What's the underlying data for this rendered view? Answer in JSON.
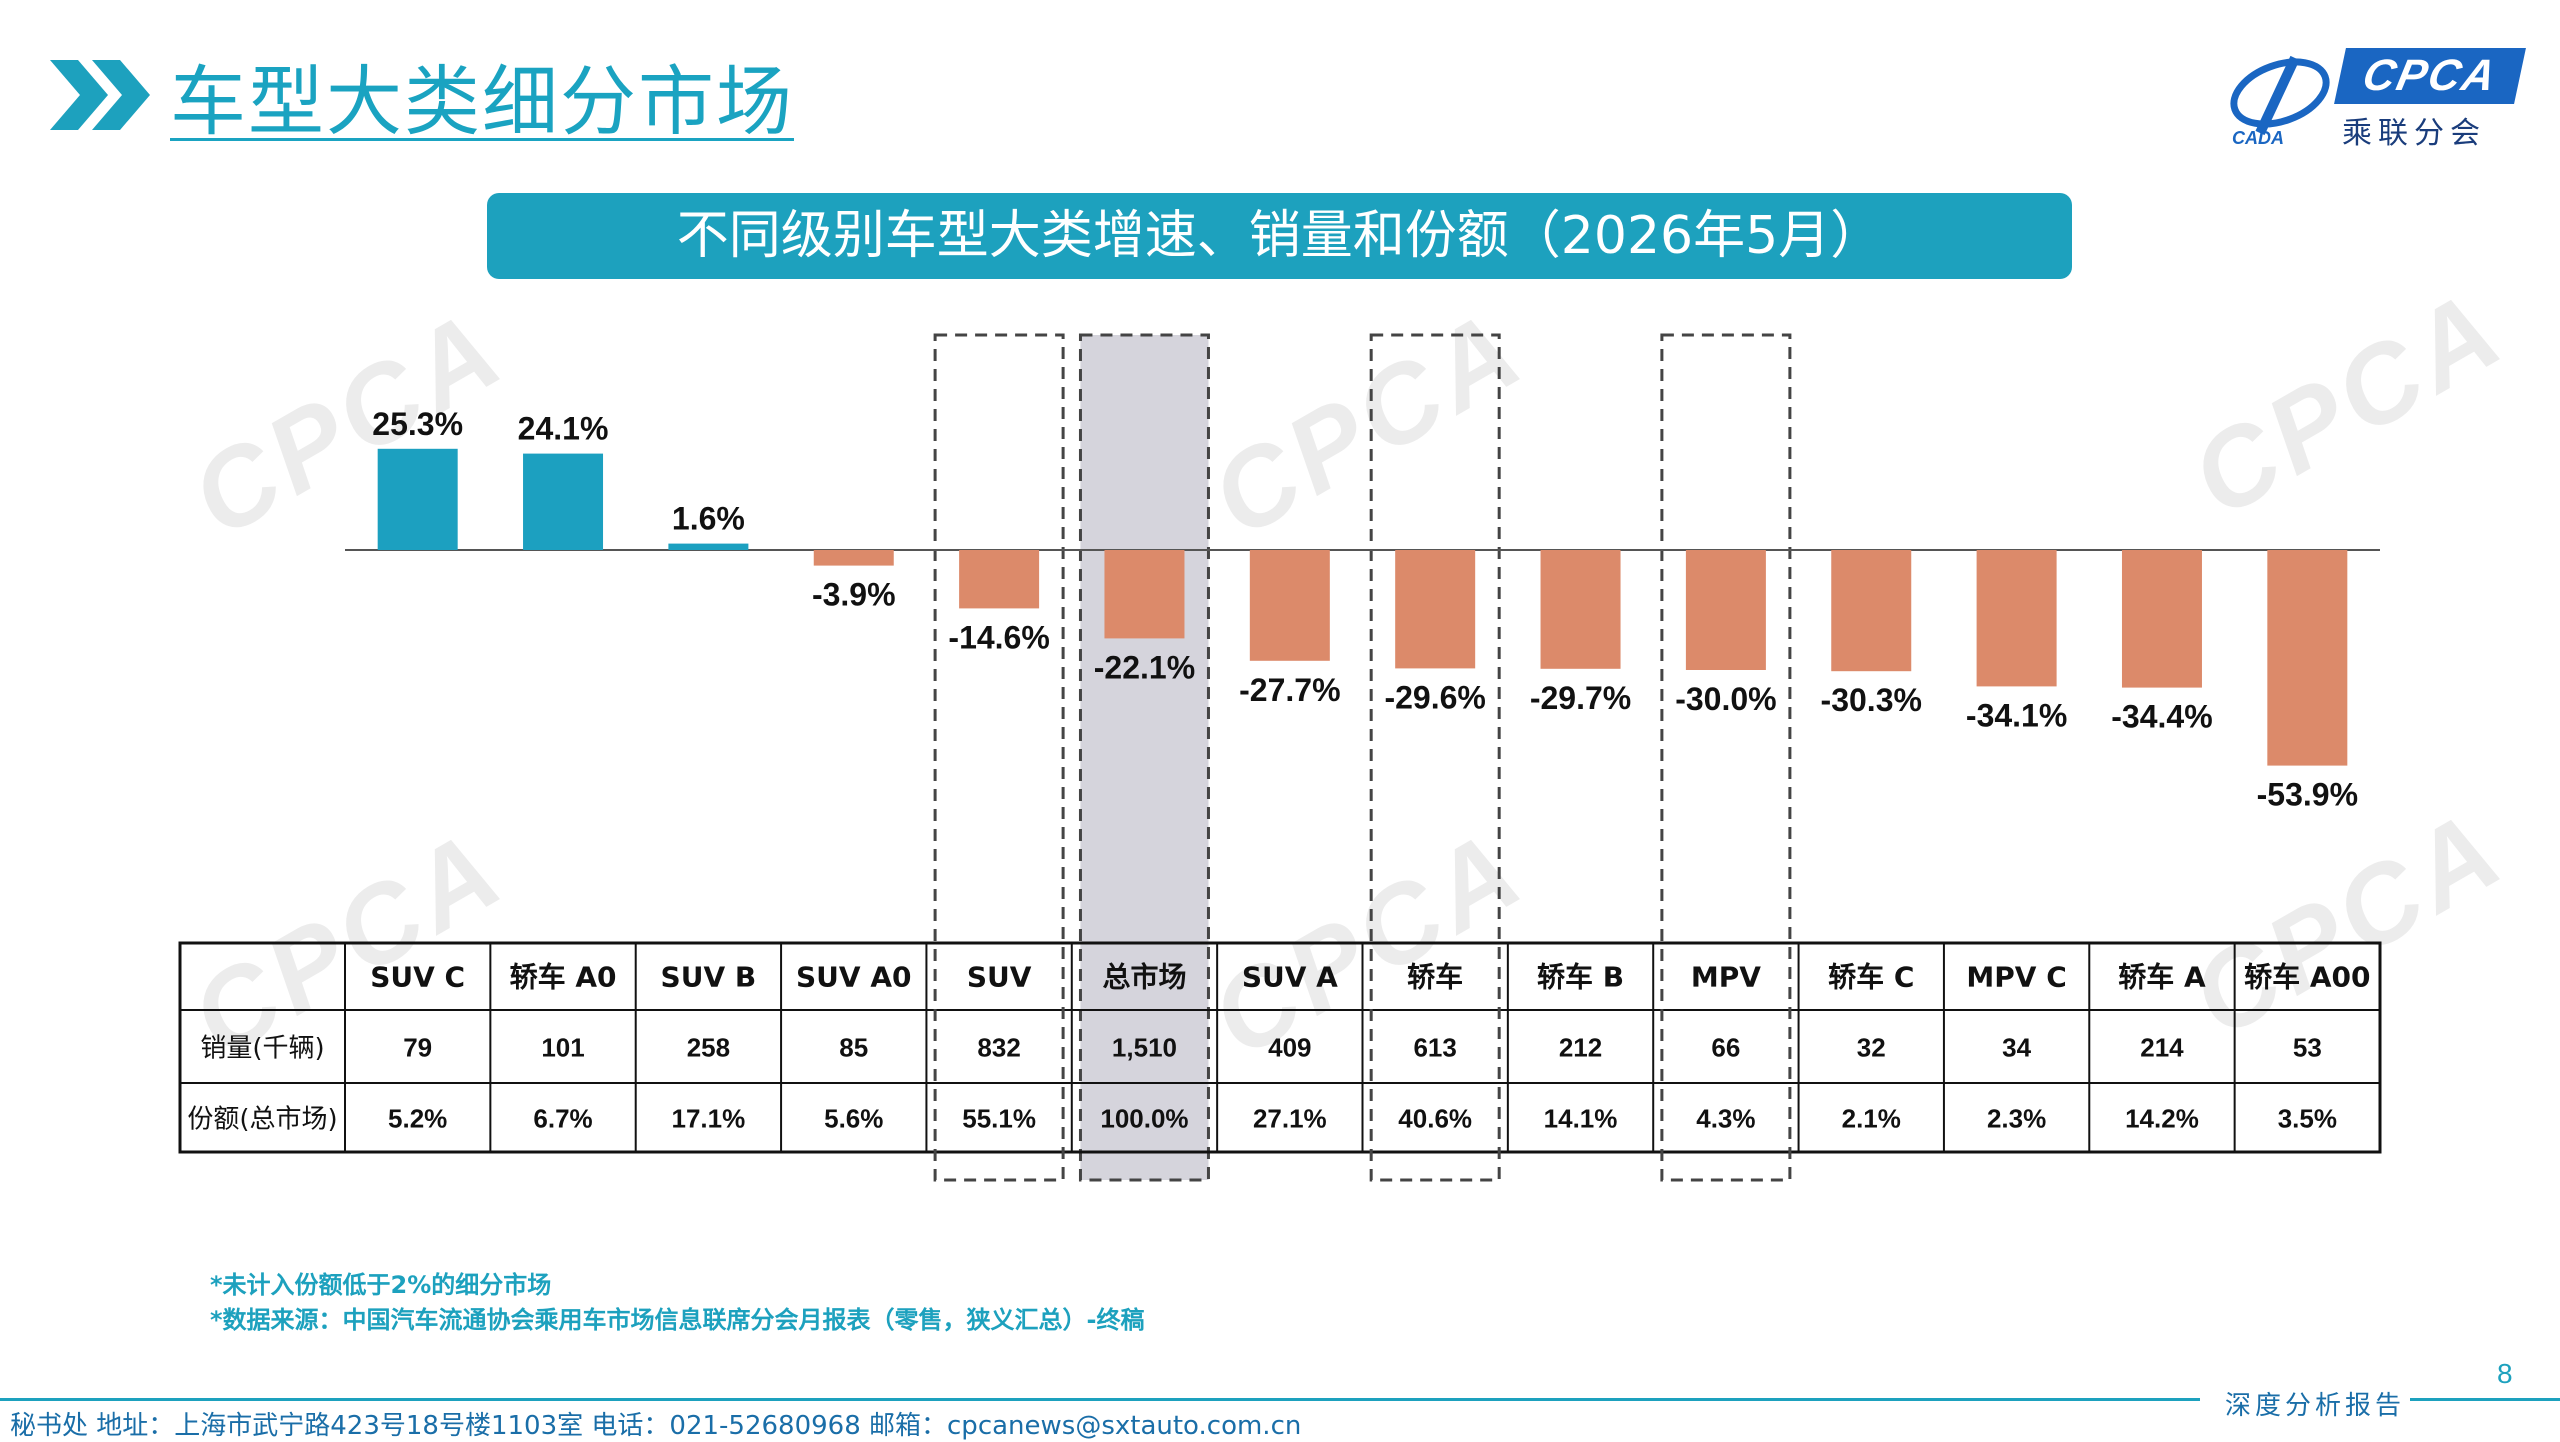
{
  "header": {
    "title": "车型大类细分市场",
    "logo_text": "CPCA",
    "logo_subtext": "乘联分会",
    "logo_mark_text": "CADA"
  },
  "chart_data": {
    "type": "bar",
    "title": "不同级别车型大类增速、销量和份额（2026年5月）",
    "categories": [
      "SUV C",
      "轿车 A0",
      "SUV B",
      "SUV A0",
      "SUV",
      "总市场",
      "SUV A",
      "轿车",
      "轿车 B",
      "MPV",
      "轿车 C",
      "MPV C",
      "轿车 A",
      "轿车 A00"
    ],
    "series": [
      {
        "values": [
          25.3,
          24.1,
          1.6,
          -3.9,
          -14.6,
          -22.1,
          -27.7,
          -29.6,
          -29.7,
          -30.0,
          -30.3,
          -34.1,
          -34.4,
          -53.9
        ]
      }
    ],
    "value_labels": [
      "25.3%",
      "24.1%",
      "1.6%",
      "-3.9%",
      "-14.6%",
      "-22.1%",
      "-27.7%",
      "-29.6%",
      "-29.7%",
      "-30.0%",
      "-30.3%",
      "-34.1%",
      "-34.4%",
      "-53.9%"
    ],
    "positive_color": "#1ca0c0",
    "negative_color": "#dc8a6a",
    "highlight_fill": "#d5d4dc",
    "dashed_highlights": [
      "SUV",
      "轿车",
      "MPV"
    ],
    "shaded_highlight": "总市场",
    "table": {
      "rows": [
        {
          "label": "销量(千辆)",
          "values": [
            "79",
            "101",
            "258",
            "85",
            "832",
            "1,510",
            "409",
            "613",
            "212",
            "66",
            "32",
            "34",
            "214",
            "53"
          ]
        },
        {
          "label": "份额(总市场)",
          "values": [
            "5.2%",
            "6.7%",
            "17.1%",
            "5.6%",
            "55.1%",
            "100.0%",
            "27.1%",
            "40.6%",
            "14.1%",
            "4.3%",
            "2.1%",
            "2.3%",
            "14.2%",
            "3.5%"
          ]
        }
      ]
    }
  },
  "notes": [
    "*未计入份额低于2%的细分市场",
    "*数据来源：中国汽车流通协会乘用车市场信息联席分会月报表（零售，狭义汇总）-终稿"
  ],
  "page_number": "8",
  "footer": {
    "contact": "秘书处  地址：上海市武宁路423号18号楼1103室  电话：021-52680968  邮箱：cpcanews@sxtauto.com.cn",
    "report_label": "深度分析报告"
  },
  "watermark_text": "CPCA"
}
